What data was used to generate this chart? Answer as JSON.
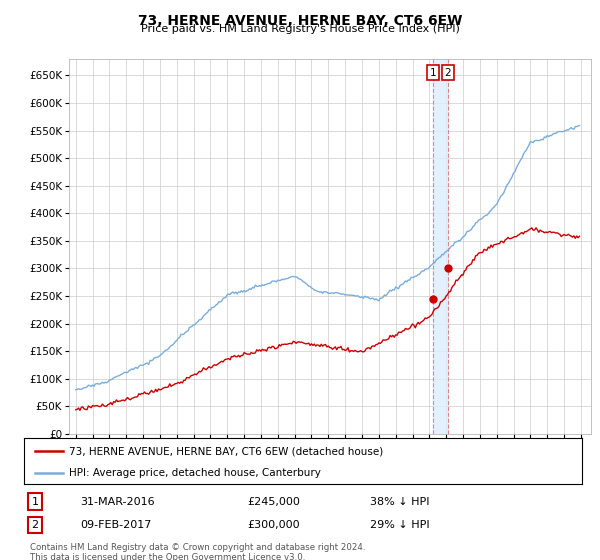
{
  "title": "73, HERNE AVENUE, HERNE BAY, CT6 6EW",
  "subtitle": "Price paid vs. HM Land Registry's House Price Index (HPI)",
  "legend_line1": "73, HERNE AVENUE, HERNE BAY, CT6 6EW (detached house)",
  "legend_line2": "HPI: Average price, detached house, Canterbury",
  "transaction1_date": "31-MAR-2016",
  "transaction1_price": "£245,000",
  "transaction1_hpi": "38% ↓ HPI",
  "transaction2_date": "09-FEB-2017",
  "transaction2_price": "£300,000",
  "transaction2_hpi": "29% ↓ HPI",
  "footer": "Contains HM Land Registry data © Crown copyright and database right 2024.\nThis data is licensed under the Open Government Licence v3.0.",
  "hpi_color": "#7aaddb",
  "price_color": "#cc0000",
  "vline_color": "#dd8888",
  "vfill_color": "#ddeeff",
  "ylim": [
    0,
    680000
  ],
  "yticks": [
    0,
    50000,
    100000,
    150000,
    200000,
    250000,
    300000,
    350000,
    400000,
    450000,
    500000,
    550000,
    600000,
    650000
  ],
  "background_color": "#ffffff",
  "grid_color": "#cccccc",
  "t1_year": 2016.21,
  "t2_year": 2017.11,
  "t1_price": 245000,
  "t2_price": 300000
}
